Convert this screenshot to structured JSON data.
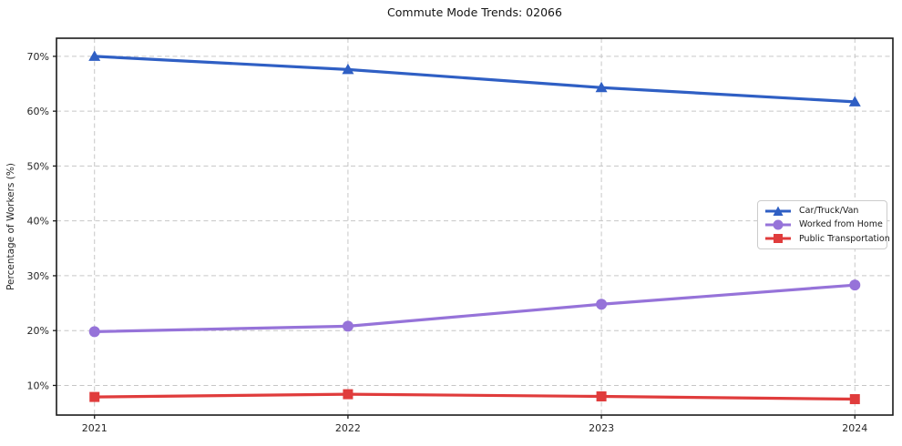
{
  "title": "Commute Mode Trends: 02066",
  "chart_data": {
    "type": "line",
    "title": "Commute Mode Trends: 02066",
    "xlabel": "",
    "ylabel": "Percentage of Workers (%)",
    "x": [
      2021,
      2022,
      2023,
      2024
    ],
    "x_tick_labels": [
      "2021",
      "2022",
      "2023",
      "2024"
    ],
    "y_ticks": [
      10,
      20,
      30,
      40,
      50,
      60,
      70
    ],
    "y_tick_labels": [
      "10%",
      "20%",
      "30%",
      "40%",
      "50%",
      "60%",
      "70%"
    ],
    "ylim": [
      4.6,
      73.3
    ],
    "xlim": [
      2020.85,
      2024.15
    ],
    "grid": true,
    "grid_style": "dashed",
    "legend_position": "center-right",
    "series": [
      {
        "id": "car-truck-van",
        "name": "Car/Truck/Van",
        "color": "#2f5fc4",
        "marker": "triangle",
        "values": [
          70.0,
          67.6,
          64.3,
          61.7
        ]
      },
      {
        "id": "worked-from-home",
        "name": "Worked from Home",
        "color": "#9673d9",
        "marker": "circle",
        "values": [
          19.8,
          20.8,
          24.8,
          28.3
        ]
      },
      {
        "id": "public-transportation",
        "name": "Public Transportation",
        "color": "#e03c3c",
        "marker": "square",
        "values": [
          7.9,
          8.4,
          8.0,
          7.5
        ]
      }
    ]
  }
}
